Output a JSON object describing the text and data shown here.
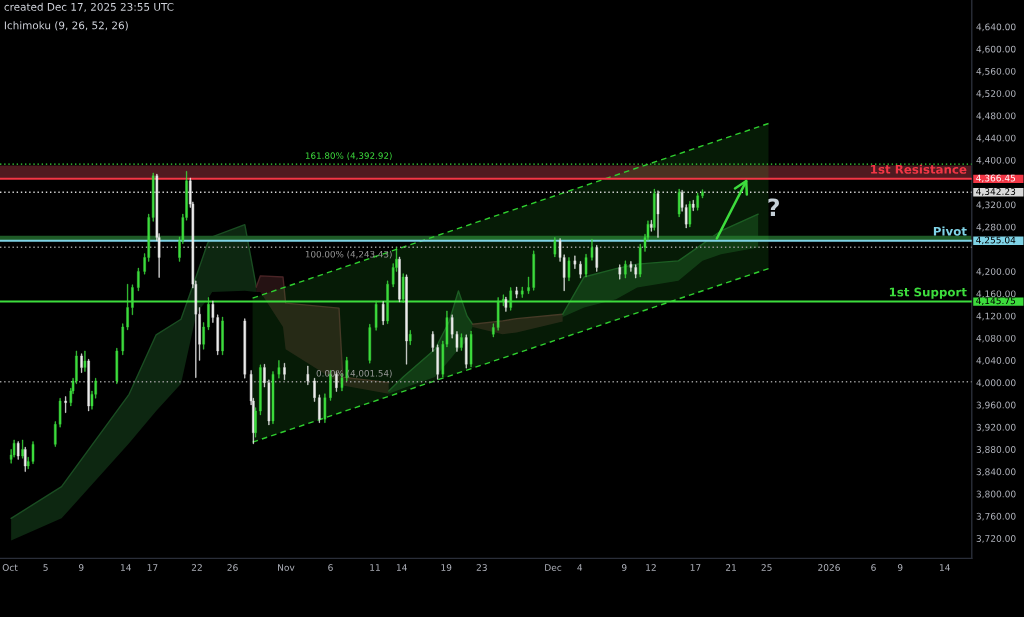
{
  "chart_data": {
    "type": "candlestick",
    "title": "created Dec 17, 2025 23:55 UTC",
    "subtitle": "Ichimoku (9, 26, 52, 26)",
    "x": [
      "2025-10-01T03:00",
      "2025-10-01T11:00",
      "2025-10-01T22:00",
      "2025-10-02T10:00",
      "2025-10-02T17:00",
      "2025-10-03T01:00",
      "2025-10-03T14:00",
      "2025-10-06T02:00",
      "2025-10-06T15:00",
      "2025-10-07T06:00",
      "2025-10-07T20:00",
      "2025-10-08T02:00",
      "2025-10-08T11:00",
      "2025-10-09T01:00",
      "2025-10-09T10:00",
      "2025-10-09T20:00",
      "2025-10-10T05:00",
      "2025-10-10T15:00",
      "2025-10-13T00:00",
      "2025-10-13T16:00",
      "2025-10-14T05:00",
      "2025-10-14T18:00",
      "2025-10-15T10:00",
      "2025-10-16T03:00",
      "2025-10-16T14:00",
      "2025-10-17T02:00",
      "2025-10-17T12:00",
      "2025-10-17T18:00",
      "2025-10-20T01:00",
      "2025-10-20T10:00",
      "2025-10-20T20:00",
      "2025-10-21T06:00",
      "2025-10-21T13:00",
      "2025-10-21T21:00",
      "2025-10-22T07:00",
      "2025-10-22T18:00",
      "2025-10-23T07:00",
      "2025-10-23T19:00",
      "2025-10-24T08:00",
      "2025-10-24T21:00",
      "2025-10-27T09:00",
      "2025-10-28T02:00",
      "2025-10-28T08:00",
      "2025-10-28T14:00",
      "2025-10-29T03:00",
      "2025-10-29T14:00",
      "2025-10-30T02:00",
      "2025-10-30T13:00",
      "2025-10-31T05:00",
      "2025-10-31T20:00",
      "2025-11-03T11:00",
      "2025-11-04T05:00",
      "2025-11-04T18:00",
      "2025-11-05T09:00",
      "2025-11-06T00:00",
      "2025-11-06T16:00",
      "2025-11-07T07:00",
      "2025-11-07T20:00",
      "2025-11-10T10:00",
      "2025-11-11T03:00",
      "2025-11-11T22:00",
      "2025-11-12T10:00",
      "2025-11-13T01:00",
      "2025-11-13T10:00",
      "2025-11-13T18:00",
      "2025-11-14T04:00",
      "2025-11-14T13:00",
      "2025-11-14T23:00",
      "2025-11-17T12:00",
      "2025-11-18T01:00",
      "2025-11-18T15:00",
      "2025-11-19T02:00",
      "2025-11-19T16:00",
      "2025-11-20T05:00",
      "2025-11-20T17:00",
      "2025-11-21T06:00",
      "2025-11-21T19:00",
      "2025-11-24T07:00",
      "2025-11-24T20:00",
      "2025-11-25T10:00",
      "2025-11-25T17:00",
      "2025-11-26T06:00",
      "2025-11-26T22:00",
      "2025-11-27T13:00",
      "2025-11-28T06:00",
      "2025-11-28T20:00",
      "2025-12-01T05:00",
      "2025-12-01T19:00",
      "2025-12-02T06:00",
      "2025-12-02T19:00",
      "2025-12-03T11:00",
      "2025-12-04T02:00",
      "2025-12-04T17:00",
      "2025-12-05T09:00",
      "2025-12-05T22:00",
      "2025-12-08T12:00",
      "2025-12-09T03:00",
      "2025-12-09T18:00",
      "2025-12-10T07:00",
      "2025-12-10T19:00",
      "2025-12-11T08:00",
      "2025-12-11T16:00",
      "2025-12-12T01:00",
      "2025-12-12T09:00",
      "2025-12-12T19:00",
      "2025-12-15T04:00",
      "2025-12-15T12:00",
      "2025-12-15T23:00",
      "2025-12-16T09:00",
      "2025-12-16T18:00",
      "2025-12-17T06:00",
      "2025-12-17T19:00"
    ],
    "ohlc": [
      [
        3862,
        3880,
        3855,
        3870
      ],
      [
        3870,
        3897,
        3866,
        3891
      ],
      [
        3891,
        3894,
        3862,
        3868
      ],
      [
        3868,
        3897,
        3864,
        3880
      ],
      [
        3880,
        3884,
        3840,
        3850
      ],
      [
        3850,
        3866,
        3845,
        3858
      ],
      [
        3858,
        3894,
        3854,
        3889
      ],
      [
        3889,
        3930,
        3885,
        3925
      ],
      [
        3925,
        3972,
        3920,
        3967
      ],
      [
        3967,
        3975,
        3946,
        3964
      ],
      [
        3964,
        3990,
        3958,
        3985
      ],
      [
        3985,
        4008,
        3980,
        4003
      ],
      [
        4003,
        4057,
        3998,
        4048
      ],
      [
        4048,
        4052,
        4018,
        4027
      ],
      [
        4027,
        4057,
        4020,
        4039
      ],
      [
        4039,
        4042,
        3949,
        3958
      ],
      [
        3958,
        3985,
        3952,
        3979
      ],
      [
        3979,
        4008,
        3972,
        4003
      ],
      [
        4003,
        4062,
        3998,
        4057
      ],
      [
        4057,
        4106,
        4050,
        4100
      ],
      [
        4100,
        4177,
        4095,
        4135
      ],
      [
        4135,
        4176,
        4122,
        4171
      ],
      [
        4171,
        4206,
        4165,
        4200
      ],
      [
        4200,
        4232,
        4195,
        4225
      ],
      [
        4225,
        4303,
        4218,
        4297
      ],
      [
        4297,
        4377,
        4290,
        4372
      ],
      [
        4372,
        4375,
        4255,
        4261
      ],
      [
        4261,
        4268,
        4189,
        4225
      ],
      [
        4225,
        4262,
        4218,
        4255
      ],
      [
        4255,
        4303,
        4250,
        4297
      ],
      [
        4297,
        4380,
        4292,
        4363
      ],
      [
        4363,
        4368,
        4315,
        4321
      ],
      [
        4321,
        4325,
        4170,
        4177
      ],
      [
        4177,
        4183,
        4009,
        4123
      ],
      [
        4123,
        4135,
        4040,
        4069
      ],
      [
        4069,
        4108,
        4060,
        4100
      ],
      [
        4100,
        4153,
        4095,
        4141
      ],
      [
        4141,
        4147,
        4108,
        4117
      ],
      [
        4117,
        4122,
        4050,
        4057
      ],
      [
        4057,
        4118,
        4050,
        4111
      ],
      [
        4111,
        4115,
        4008,
        4015
      ],
      [
        4015,
        4022,
        3960,
        3967
      ],
      [
        3967,
        3972,
        3890,
        3910
      ],
      [
        3910,
        3955,
        3902,
        3949
      ],
      [
        3949,
        4032,
        3942,
        4027
      ],
      [
        4027,
        4033,
        3992,
        4000
      ],
      [
        4000,
        4005,
        3924,
        3931
      ],
      [
        3931,
        4020,
        3926,
        4015
      ],
      [
        4015,
        4040,
        4008,
        4027
      ],
      [
        4027,
        4035,
        4005,
        4015
      ],
      [
        4015,
        4030,
        3996,
        4003
      ],
      [
        4003,
        4008,
        3966,
        3973
      ],
      [
        3973,
        3978,
        3928,
        3934
      ],
      [
        3934,
        3980,
        3928,
        3973
      ],
      [
        3973,
        4022,
        3968,
        4015
      ],
      [
        4015,
        4020,
        3984,
        3991
      ],
      [
        3991,
        4016,
        3985,
        4009
      ],
      [
        4009,
        4046,
        4003,
        4040
      ],
      [
        4040,
        4105,
        4035,
        4099
      ],
      [
        4099,
        4147,
        4094,
        4141
      ],
      [
        4141,
        4146,
        4104,
        4111
      ],
      [
        4111,
        4183,
        4106,
        4177
      ],
      [
        4177,
        4214,
        4172,
        4207
      ],
      [
        4207,
        4243,
        4200,
        4222
      ],
      [
        4222,
        4226,
        4145,
        4150
      ],
      [
        4150,
        4196,
        4144,
        4190
      ],
      [
        4190,
        4194,
        4033,
        4075
      ],
      [
        4075,
        4094,
        4068,
        4087
      ],
      [
        4087,
        4092,
        4056,
        4063
      ],
      [
        4063,
        4068,
        4006,
        4015
      ],
      [
        4015,
        4075,
        4010,
        4069
      ],
      [
        4069,
        4129,
        4064,
        4117
      ],
      [
        4117,
        4122,
        4080,
        4087
      ],
      [
        4087,
        4092,
        4056,
        4063
      ],
      [
        4063,
        4088,
        4058,
        4081
      ],
      [
        4081,
        4086,
        4026,
        4033
      ],
      [
        4033,
        4093,
        4028,
        4087
      ],
      [
        4087,
        4106,
        4082,
        4099
      ],
      [
        4099,
        4153,
        4094,
        4147
      ],
      [
        4147,
        4158,
        4138,
        4150
      ],
      [
        4150,
        4154,
        4128,
        4135
      ],
      [
        4135,
        4171,
        4130,
        4165
      ],
      [
        4165,
        4172,
        4152,
        4159
      ],
      [
        4159,
        4172,
        4153,
        4165
      ],
      [
        4165,
        4190,
        4160,
        4171
      ],
      [
        4171,
        4237,
        4166,
        4231
      ],
      [
        4231,
        4261,
        4226,
        4255
      ],
      [
        4255,
        4259,
        4218,
        4225
      ],
      [
        4225,
        4230,
        4165,
        4189
      ],
      [
        4189,
        4225,
        4183,
        4219
      ],
      [
        4219,
        4228,
        4205,
        4213
      ],
      [
        4213,
        4218,
        4188,
        4195
      ],
      [
        4195,
        4231,
        4190,
        4225
      ],
      [
        4225,
        4258,
        4220,
        4243
      ],
      [
        4243,
        4247,
        4200,
        4207
      ],
      [
        4207,
        4212,
        4186,
        4195
      ],
      [
        4195,
        4219,
        4188,
        4213
      ],
      [
        4213,
        4218,
        4200,
        4207
      ],
      [
        4207,
        4212,
        4188,
        4195
      ],
      [
        4195,
        4249,
        4190,
        4243
      ],
      [
        4243,
        4267,
        4236,
        4261
      ],
      [
        4261,
        4291,
        4256,
        4285
      ],
      [
        4285,
        4292,
        4272,
        4279
      ],
      [
        4279,
        4348,
        4274,
        4340
      ],
      [
        4340,
        4345,
        4261,
        4303
      ],
      [
        4303,
        4348,
        4298,
        4342
      ],
      [
        4342,
        4346,
        4308,
        4315
      ],
      [
        4315,
        4320,
        4278,
        4285
      ],
      [
        4285,
        4326,
        4280,
        4321
      ],
      [
        4321,
        4328,
        4309,
        4315
      ],
      [
        4315,
        4341,
        4310,
        4336
      ],
      [
        4336,
        4347,
        4332,
        4342.23
      ]
    ],
    "colors": [
      "#3ddc3d",
      "#3ddc3d",
      "#ececec",
      "#3ddc3d",
      "#ececec",
      "#3ddc3d",
      "#3ddc3d",
      "#3ddc3d",
      "#3ddc3d",
      "#ececec",
      "#3ddc3d",
      "#3ddc3d",
      "#3ddc3d",
      "#ececec",
      "#3ddc3d",
      "#ececec",
      "#3ddc3d",
      "#3ddc3d",
      "#3ddc3d",
      "#3ddc3d",
      "#3ddc3d",
      "#3ddc3d",
      "#3ddc3d",
      "#3ddc3d",
      "#3ddc3d",
      "#3ddc3d",
      "#ececec",
      "#ececec",
      "#3ddc3d",
      "#3ddc3d",
      "#3ddc3d",
      "#ececec",
      "#ececec",
      "#ececec",
      "#ececec",
      "#3ddc3d",
      "#3ddc3d",
      "#ececec",
      "#ececec",
      "#3ddc3d",
      "#ececec",
      "#ececec",
      "#ececec",
      "#3ddc3d",
      "#3ddc3d",
      "#ececec",
      "#ececec",
      "#3ddc3d",
      "#3ddc3d",
      "#ececec",
      "#ececec",
      "#ececec",
      "#ececec",
      "#3ddc3d",
      "#3ddc3d",
      "#ececec",
      "#3ddc3d",
      "#3ddc3d",
      "#3ddc3d",
      "#3ddc3d",
      "#ececec",
      "#3ddc3d",
      "#3ddc3d",
      "#3ddc3d",
      "#ececec",
      "#3ddc3d",
      "#ececec",
      "#3ddc3d",
      "#ececec",
      "#ececec",
      "#3ddc3d",
      "#3ddc3d",
      "#ececec",
      "#ececec",
      "#3ddc3d",
      "#ececec",
      "#3ddc3d",
      "#3ddc3d",
      "#3ddc3d",
      "#3ddc3d",
      "#ececec",
      "#3ddc3d",
      "#ececec",
      "#3ddc3d",
      "#3ddc3d",
      "#3ddc3d",
      "#3ddc3d",
      "#ececec",
      "#ececec",
      "#3ddc3d",
      "#ececec",
      "#ececec",
      "#3ddc3d",
      "#3ddc3d",
      "#ececec",
      "#ececec",
      "#3ddc3d",
      "#ececec",
      "#ececec",
      "#3ddc3d",
      "#3ddc3d",
      "#3ddc3d",
      "#ececec",
      "#3ddc3d",
      "#ececec",
      "#3ddc3d",
      "#ececec",
      "#ececec",
      "#3ddc3d",
      "#ececec",
      "#3ddc3d",
      "#3ddc3d"
    ],
    "series": [
      {
        "type": "line",
        "color": "#1a4d22",
        "x": [
          "2025-10-01T03:00",
          "2025-10-06T19:00",
          "2025-10-14T09:00",
          "2025-10-17T10:00",
          "2025-10-20T05:00",
          "2025-10-21T23:00",
          "2025-10-23T05:00",
          "2025-10-23T17:00",
          "2025-10-27T09:00",
          "2025-10-28T16:00"
        ],
        "values": [
          3756,
          3813,
          3979,
          4086,
          4114,
          4193,
          4251,
          4262,
          4284,
          4172
        ],
        "lower": [
          3716,
          3756,
          3891,
          3949,
          3998,
          4125,
          4150,
          4163,
          4165,
          4163
        ],
        "upper": [
          3756,
          3813,
          3979,
          4086,
          4114,
          4193,
          4251,
          4262,
          4284,
          4172
        ]
      },
      {
        "type": "line",
        "color": "#4a2426",
        "x": [
          "2025-10-28T16:00",
          "2025-10-29T03:00",
          "2025-10-31T16:00",
          "2025-10-31T23:00",
          "2025-11-06T23:00",
          "2025-11-07T09:00",
          "2025-11-12T13:00"
        ],
        "values": [
          4172,
          4192,
          4190,
          4143,
          4134,
          4010,
          4000
        ],
        "lower": [
          4163,
          4163,
          4100,
          4060,
          4000,
          3995,
          3980
        ],
        "upper": [
          4172,
          4192,
          4190,
          4143,
          4134,
          4010,
          4000
        ]
      },
      {
        "type": "line",
        "color": "#1a4d22",
        "x": [
          "2025-11-12T13:00",
          "2025-11-14T04:00",
          "2025-11-17T18:00",
          "2025-11-19T08:00",
          "2025-11-20T09:00",
          "2025-11-21T08:00",
          "2025-11-21T23:00"
        ],
        "values": [
          3985,
          4010,
          4060,
          4110,
          4165,
          4120,
          4105
        ],
        "lower": [
          3980,
          3990,
          4010,
          4040,
          4060,
          4075,
          4100
        ],
        "upper": [
          3985,
          4010,
          4060,
          4110,
          4165,
          4120,
          4105
        ]
      },
      {
        "type": "line",
        "color": "#4a2426",
        "x": [
          "2025-11-21T23:00",
          "2025-11-25T08:00",
          "2025-11-26T22:00",
          "2025-12-02T02:00"
        ],
        "values": [
          4105,
          4111,
          4115,
          4123
        ],
        "lower": [
          4100,
          4087,
          4090,
          4110
        ],
        "upper": [
          4105,
          4111,
          4115,
          4123
        ]
      },
      {
        "type": "line",
        "color": "#1a4d22",
        "x": [
          "2025-12-02T02:00",
          "2025-12-04T12:00",
          "2025-12-08T02:00",
          "2025-12-10T11:00",
          "2025-12-15T02:00",
          "2025-12-17T19:00",
          "2025-12-19T21:00",
          "2025-12-24T01:00"
        ],
        "values": [
          4123,
          4190,
          4205,
          4213,
          4219,
          4249,
          4273,
          4303
        ],
        "lower": [
          4118,
          4135,
          4150,
          4171,
          4183,
          4219,
          4231,
          4243
        ],
        "upper": [
          4123,
          4190,
          4205,
          4213,
          4219,
          4249,
          4273,
          4303
        ]
      },
      {
        "type": "line",
        "color": "#2fcf2f",
        "line_style": "dashed",
        "x": [
          "2025-10-28T06:00",
          "2025-12-25T05:00"
        ],
        "values": [
          4152,
          4466
        ],
        "lower": [
          3893,
          4205
        ],
        "upper": [
          4152,
          4466
        ]
      },
      {
        "type": "line",
        "color": "#2fcf2f",
        "line_style": "dashed",
        "x": [
          "2025-10-28T06:00",
          "2025-12-25T05:00"
        ],
        "values": [
          3893,
          4205
        ]
      }
    ],
    "bands": [
      {
        "axis": "y",
        "from": 4366.45,
        "to": 4390.4,
        "color": "#4f1a20"
      },
      {
        "axis": "y",
        "from": 4255.04,
        "to": 4264,
        "color": "#1e5a26"
      }
    ],
    "ref_lines": [
      {
        "axis": "y",
        "value": 4392.92,
        "color": "#3ddc3d",
        "line_style": "dotted"
      },
      {
        "axis": "y",
        "value": 4366.45,
        "label": "4,366.45",
        "color": "#f23645",
        "line_style": "solid"
      },
      {
        "axis": "y",
        "value": 4342.23,
        "label": "4,342.23",
        "color": "#d9d9d9",
        "line_style": "dotted"
      },
      {
        "axis": "y",
        "value": 4255.04,
        "label": "4,255.04",
        "color": "#7fd3e6",
        "line_style": "solid"
      },
      {
        "axis": "y",
        "value": 4243.43,
        "color": "#9a9a9a",
        "line_style": "dotted"
      },
      {
        "axis": "y",
        "value": 4145.75,
        "label": "4,145.75",
        "color": "#3ddc3d",
        "line_style": "solid"
      },
      {
        "axis": "y",
        "value": 4001.54,
        "color": "#9a9a9a",
        "line_style": "dotted"
      }
    ],
    "annotations": [
      {
        "text": "161.80% (4,392.92)",
        "x": "2025-11-12T23:00",
        "y": 4392.92
      },
      {
        "text": "100.00% (4,243.43)",
        "x": "2025-11-12T23:00",
        "y": 4243.43
      },
      {
        "text": "0.00% (4,001.54)",
        "x": "2025-11-12T23:00",
        "y": 4001.54
      },
      {
        "text": "1st Resistance",
        "x": "2026-01-16T12:00",
        "y": 4366.45
      },
      {
        "text": "Pivot",
        "x": "2026-01-16T12:00",
        "y": 4255.04
      },
      {
        "text": "1st Support",
        "x": "2026-01-16T12:00",
        "y": 4145.75
      },
      {
        "text": "?",
        "x": "2025-12-22T20:00",
        "y": 4366.45
      }
    ],
    "xlim": [
      "2025-09-29T21:00",
      "2026-01-17T01:00"
    ],
    "xticks": [
      {
        "value": "2025-10-01",
        "label": "Oct"
      },
      {
        "value": "2025-10-05",
        "label": "5"
      },
      {
        "value": "2025-10-09",
        "label": "9"
      },
      {
        "value": "2025-10-14",
        "label": "14"
      },
      {
        "value": "2025-10-17",
        "label": "17"
      },
      {
        "value": "2025-10-22",
        "label": "22"
      },
      {
        "value": "2025-10-26",
        "label": "26"
      },
      {
        "value": "2025-11-01",
        "label": "Nov"
      },
      {
        "value": "2025-11-06",
        "label": "6"
      },
      {
        "value": "2025-11-11",
        "label": "11"
      },
      {
        "value": "2025-11-14",
        "label": "14"
      },
      {
        "value": "2025-11-19",
        "label": "19"
      },
      {
        "value": "2025-11-23",
        "label": "23"
      },
      {
        "value": "2025-12-01",
        "label": "Dec"
      },
      {
        "value": "2025-12-04",
        "label": "4"
      },
      {
        "value": "2025-12-09",
        "label": "9"
      },
      {
        "value": "2025-12-12",
        "label": "12"
      },
      {
        "value": "2025-12-17",
        "label": "17"
      },
      {
        "value": "2025-12-21",
        "label": "21"
      },
      {
        "value": "2025-12-25",
        "label": "25"
      },
      {
        "value": "2026-01-01",
        "label": "2026"
      },
      {
        "value": "2026-01-06",
        "label": "6"
      },
      {
        "value": "2026-01-09",
        "label": "9"
      },
      {
        "value": "2026-01-14",
        "label": "14"
      }
    ],
    "ylim": [
      3684,
      4688
    ],
    "yticks": [
      {
        "value": 4640,
        "label": "4,640.00"
      },
      {
        "value": 4600,
        "label": "4,600.00"
      },
      {
        "value": 4560,
        "label": "4,560.00"
      },
      {
        "value": 4520,
        "label": "4,520.00"
      },
      {
        "value": 4480,
        "label": "4,480.00"
      },
      {
        "value": 4440,
        "label": "4,440.00"
      },
      {
        "value": 4400,
        "label": "4,400.00"
      },
      {
        "value": 4320,
        "label": "4,320.00"
      },
      {
        "value": 4280,
        "label": "4,280.00"
      },
      {
        "value": 4200,
        "label": "4,200.00"
      },
      {
        "value": 4160,
        "label": "4,160.00"
      },
      {
        "value": 4120,
        "label": "4,120.00"
      },
      {
        "value": 4080,
        "label": "4,080.00"
      },
      {
        "value": 4040,
        "label": "4,040.00"
      },
      {
        "value": 4000,
        "label": "4,000.00"
      },
      {
        "value": 3960,
        "label": "3,960.00"
      },
      {
        "value": 3920,
        "label": "3,920.00"
      },
      {
        "value": 3880,
        "label": "3,880.00"
      },
      {
        "value": 3840,
        "label": "3,840.00"
      },
      {
        "value": 3800,
        "label": "3,800.00"
      },
      {
        "value": 3760,
        "label": "3,760.00"
      },
      {
        "value": 3720,
        "label": "3,720.00"
      }
    ]
  }
}
